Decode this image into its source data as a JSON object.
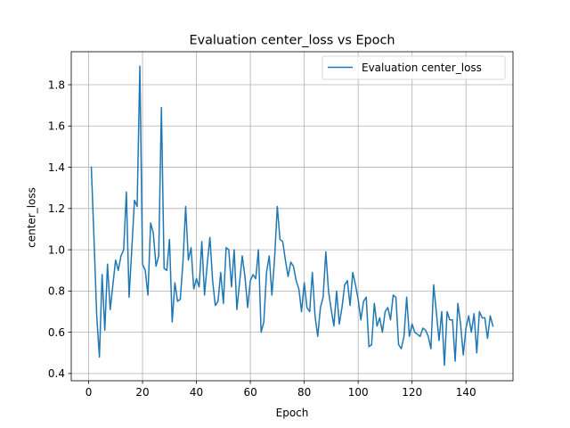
{
  "chart_data": {
    "type": "line",
    "title": "Evaluation center_loss vs Epoch",
    "xlabel": "Epoch",
    "ylabel": "center_loss",
    "xlim": [
      -6.45,
      157.45
    ],
    "ylim": [
      0.365,
      1.96
    ],
    "xticks": [
      0,
      20,
      40,
      60,
      80,
      100,
      120,
      140
    ],
    "yticks": [
      0.4,
      0.6,
      0.8,
      1.0,
      1.2,
      1.4,
      1.6,
      1.8
    ],
    "xtick_labels": [
      "0",
      "20",
      "40",
      "60",
      "80",
      "100",
      "120",
      "140"
    ],
    "ytick_labels": [
      "0.4",
      "0.6",
      "0.8",
      "1.0",
      "1.2",
      "1.4",
      "1.6",
      "1.8"
    ],
    "grid": true,
    "legend_position": "top-right",
    "series": [
      {
        "name": "Evaluation center_loss",
        "color": "#1f77b4",
        "x": [
          1,
          2,
          3,
          4,
          5,
          6,
          7,
          8,
          9,
          10,
          11,
          12,
          13,
          14,
          15,
          16,
          17,
          18,
          19,
          20,
          21,
          22,
          23,
          24,
          25,
          26,
          27,
          28,
          29,
          30,
          31,
          32,
          33,
          34,
          35,
          36,
          37,
          38,
          39,
          40,
          41,
          42,
          43,
          44,
          45,
          46,
          47,
          48,
          49,
          50,
          51,
          52,
          53,
          54,
          55,
          56,
          57,
          58,
          59,
          60,
          61,
          62,
          63,
          64,
          65,
          66,
          67,
          68,
          69,
          70,
          71,
          72,
          73,
          74,
          75,
          76,
          77,
          78,
          79,
          80,
          81,
          82,
          83,
          84,
          85,
          86,
          87,
          88,
          89,
          90,
          91,
          92,
          93,
          94,
          95,
          96,
          97,
          98,
          99,
          100,
          101,
          102,
          103,
          104,
          105,
          106,
          107,
          108,
          109,
          110,
          111,
          112,
          113,
          114,
          115,
          116,
          117,
          118,
          119,
          120,
          121,
          122,
          123,
          124,
          125,
          126,
          127,
          128,
          129,
          130,
          131,
          132,
          133,
          134,
          135,
          136,
          137,
          138,
          139,
          140,
          141,
          142,
          143,
          144,
          145,
          146,
          147,
          148,
          149,
          150
        ],
        "values": [
          1.4,
          1.05,
          0.68,
          0.48,
          0.88,
          0.61,
          0.93,
          0.71,
          0.83,
          0.95,
          0.9,
          0.97,
          1.0,
          1.28,
          0.77,
          1.0,
          1.24,
          1.21,
          1.89,
          0.93,
          0.9,
          0.78,
          1.13,
          1.08,
          0.92,
          0.97,
          1.69,
          0.91,
          0.9,
          1.05,
          0.65,
          0.84,
          0.75,
          0.76,
          0.94,
          1.21,
          0.95,
          1.01,
          0.81,
          0.86,
          0.82,
          1.04,
          0.78,
          0.93,
          1.06,
          0.85,
          0.73,
          0.75,
          0.89,
          0.74,
          1.01,
          1.0,
          0.82,
          1.0,
          0.71,
          0.84,
          0.97,
          0.87,
          0.72,
          0.85,
          0.88,
          0.86,
          1.0,
          0.6,
          0.65,
          0.89,
          0.97,
          0.78,
          0.96,
          1.21,
          1.05,
          1.04,
          0.95,
          0.87,
          0.94,
          0.92,
          0.85,
          0.81,
          0.7,
          0.84,
          0.72,
          0.7,
          0.89,
          0.68,
          0.58,
          0.72,
          0.77,
          0.99,
          0.8,
          0.71,
          0.63,
          0.8,
          0.64,
          0.72,
          0.83,
          0.85,
          0.73,
          0.89,
          0.83,
          0.76,
          0.66,
          0.75,
          0.77,
          0.53,
          0.54,
          0.74,
          0.63,
          0.67,
          0.6,
          0.7,
          0.72,
          0.66,
          0.78,
          0.77,
          0.54,
          0.52,
          0.58,
          0.77,
          0.58,
          0.64,
          0.6,
          0.59,
          0.58,
          0.62,
          0.61,
          0.58,
          0.52,
          0.83,
          0.7,
          0.56,
          0.7,
          0.44,
          0.7,
          0.66,
          0.66,
          0.46,
          0.74,
          0.64,
          0.49,
          0.62,
          0.68,
          0.6,
          0.69,
          0.5,
          0.7,
          0.67,
          0.67,
          0.57,
          0.68,
          0.63
        ]
      }
    ]
  }
}
